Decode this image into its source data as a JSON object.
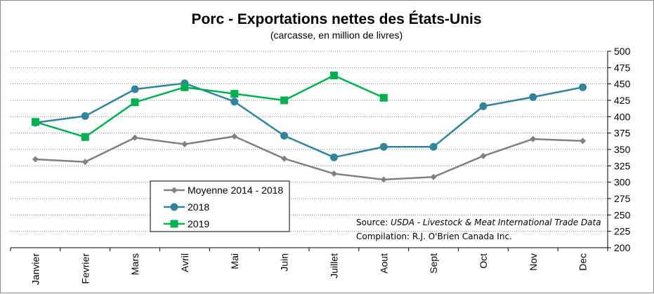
{
  "chart_data": {
    "type": "line",
    "title": "Porc - Exportations nettes des États-Unis",
    "subtitle": "(carcasse, en million de livres)",
    "categories": [
      "Janvier",
      "Fevrier",
      "Mars",
      "Avril",
      "Mai",
      "Juin",
      "Juillet",
      "Aout",
      "Sept",
      "Oct",
      "Nov",
      "Dec"
    ],
    "ylim": [
      200,
      500
    ],
    "yticks": [
      200,
      225,
      250,
      275,
      300,
      325,
      350,
      375,
      400,
      425,
      450,
      475,
      500
    ],
    "grid": "horizontal dotted",
    "legend_position": "bottom-left",
    "series": [
      {
        "name": "Moyenne 2014 - 2018",
        "color": "#808080",
        "marker": "diamond",
        "values": [
          335,
          331,
          368,
          358,
          370,
          336,
          313,
          304,
          308,
          340,
          366,
          363
        ]
      },
      {
        "name": "2018",
        "color": "#31849B",
        "marker": "circle",
        "values": [
          391,
          401,
          442,
          451,
          423,
          371,
          338,
          354,
          354,
          416,
          430,
          445
        ]
      },
      {
        "name": "2019",
        "color": "#00B050",
        "marker": "square",
        "values": [
          392,
          369,
          422,
          445,
          435,
          425,
          463,
          429,
          null,
          null,
          null,
          null
        ]
      }
    ],
    "source_prefix": "Source: ",
    "source_italic": "USDA - Livestock & Meat International Trade Data",
    "compilation": "Compilation: R.J. O'Brien Canada Inc."
  }
}
